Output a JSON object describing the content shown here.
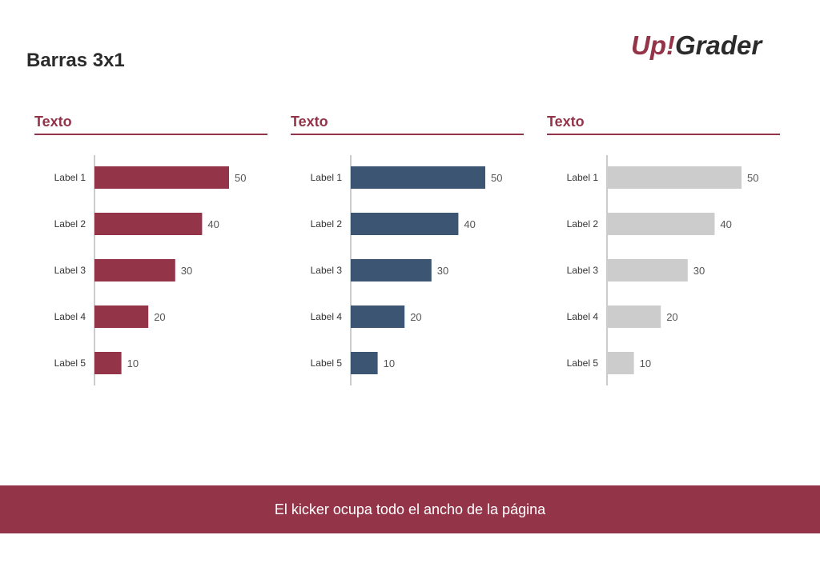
{
  "page": {
    "title": "Barras 3x1",
    "accent_color": "#943449"
  },
  "logo": {
    "text_part1": "Up",
    "text_part2": "!",
    "text_part3": "Grader",
    "color_primary": "#943449",
    "color_secondary": "#2b2b2b"
  },
  "kicker": {
    "text": "El kicker ocupa todo el ancho de la página",
    "background": "#943449"
  },
  "panels": [
    {
      "title": "Texto",
      "title_color": "#943449",
      "rule_color": "#943449"
    },
    {
      "title": "Texto",
      "title_color": "#943449",
      "rule_color": "#943449"
    },
    {
      "title": "Texto",
      "title_color": "#943449",
      "rule_color": "#943449"
    }
  ],
  "chart_data": [
    {
      "type": "bar",
      "orientation": "horizontal",
      "title": "Texto",
      "categories": [
        "Label 1",
        "Label 2",
        "Label 3",
        "Label 4",
        "Label 5"
      ],
      "values": [
        50,
        40,
        30,
        20,
        10
      ],
      "data_labels": [
        "50",
        "40",
        "30",
        "20",
        "10"
      ],
      "bar_color": "#943449",
      "xlim": [
        0,
        50
      ],
      "grid": false,
      "legend": "none"
    },
    {
      "type": "bar",
      "orientation": "horizontal",
      "title": "Texto",
      "categories": [
        "Label 1",
        "Label 2",
        "Label 3",
        "Label 4",
        "Label 5"
      ],
      "values": [
        50,
        40,
        30,
        20,
        10
      ],
      "data_labels": [
        "50",
        "40",
        "30",
        "20",
        "10"
      ],
      "bar_color": "#3b5573",
      "xlim": [
        0,
        50
      ],
      "grid": false,
      "legend": "none"
    },
    {
      "type": "bar",
      "orientation": "horizontal",
      "title": "Texto",
      "categories": [
        "Label 1",
        "Label 2",
        "Label 3",
        "Label 4",
        "Label 5"
      ],
      "values": [
        50,
        40,
        30,
        20,
        10
      ],
      "data_labels": [
        "50",
        "40",
        "30",
        "20",
        "10"
      ],
      "bar_color": "#cccccc",
      "xlim": [
        0,
        50
      ],
      "grid": false,
      "legend": "none"
    }
  ]
}
